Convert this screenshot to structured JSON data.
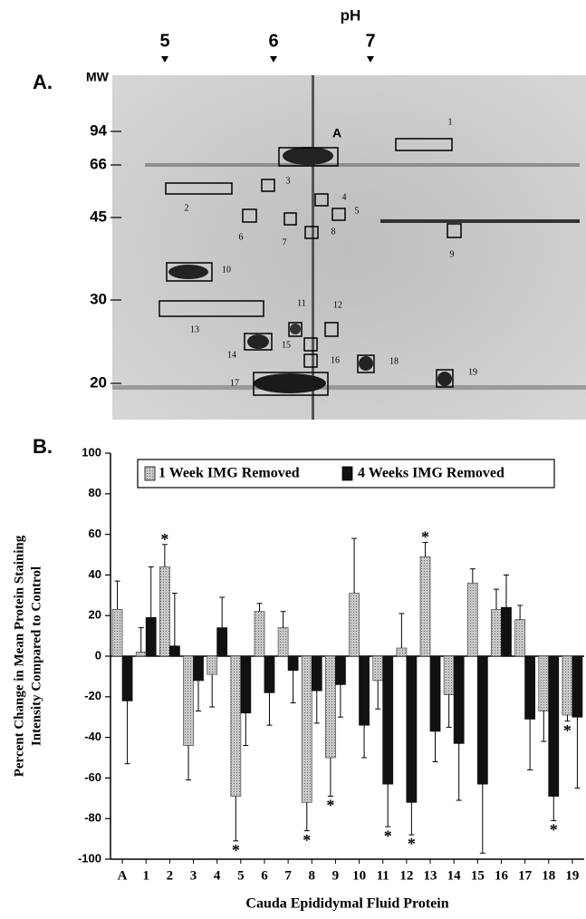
{
  "gel": {
    "panel_label": "A.",
    "title": "pH",
    "ph_labels": [
      "5",
      "6",
      "7"
    ],
    "mw_title": "MW",
    "mw_labels": [
      "94",
      "66",
      "45",
      "30",
      "20"
    ],
    "spots": [
      "A",
      "1",
      "2",
      "3",
      "4",
      "5",
      "6",
      "7",
      "8",
      "9",
      "10",
      "11",
      "12",
      "13",
      "14",
      "15",
      "16",
      "17",
      "18",
      "19"
    ]
  },
  "chart_data": {
    "type": "bar",
    "panel_label": "B.",
    "ylabel": [
      "Percent Change in Mean Protein Staining",
      "Intensity Compared to Control"
    ],
    "xlabel": "Cauda Epididymal Fluid Protein",
    "categories": [
      "A",
      "1",
      "2",
      "3",
      "4",
      "5",
      "6",
      "7",
      "8",
      "9",
      "10",
      "11",
      "12",
      "13",
      "14",
      "15",
      "16",
      "17",
      "18",
      "19"
    ],
    "series": [
      {
        "name": "1 Week IMG Removed",
        "color": "#b4b4b4",
        "values": [
          23,
          2,
          44,
          -44,
          -9,
          -69,
          22,
          14,
          -72,
          -50,
          31,
          -12,
          4,
          49,
          -19,
          36,
          23,
          18,
          -27,
          -29
        ],
        "errors": [
          14,
          12,
          11,
          17,
          16,
          22,
          4,
          8,
          14,
          19,
          27,
          14,
          17,
          7,
          16,
          7,
          10,
          7,
          15,
          3
        ],
        "marks": [
          null,
          null,
          "*",
          null,
          null,
          "*",
          null,
          null,
          "*",
          "*",
          null,
          null,
          null,
          "*",
          null,
          null,
          null,
          null,
          null,
          "*"
        ]
      },
      {
        "name": "4 Weeks IMG Removed",
        "color": "#111111",
        "values": [
          -22,
          19,
          5,
          -12,
          14,
          -28,
          -18,
          -7,
          -17,
          -14,
          -34,
          -63,
          -72,
          -37,
          -43,
          -63,
          24,
          -31,
          -69,
          -30
        ],
        "errors": [
          31,
          25,
          26,
          15,
          15,
          16,
          16,
          16,
          16,
          16,
          16,
          21,
          16,
          15,
          28,
          34,
          16,
          25,
          12,
          35
        ],
        "marks": [
          null,
          null,
          null,
          null,
          null,
          null,
          null,
          null,
          null,
          null,
          null,
          "*",
          "*",
          null,
          null,
          null,
          null,
          null,
          "*",
          null
        ]
      }
    ],
    "ylim": [
      -100,
      100
    ],
    "yticks": [
      -100,
      -80,
      -60,
      -40,
      -20,
      0,
      20,
      40,
      60,
      80,
      100
    ],
    "legend": "top",
    "grid": false
  }
}
